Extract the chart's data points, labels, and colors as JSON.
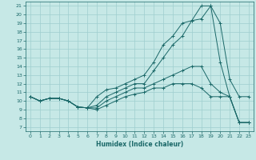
{
  "xlabel": "Humidex (Indice chaleur)",
  "xlim": [
    -0.5,
    23.5
  ],
  "ylim": [
    6.5,
    21.5
  ],
  "xticks": [
    0,
    1,
    2,
    3,
    4,
    5,
    6,
    7,
    8,
    9,
    10,
    11,
    12,
    13,
    14,
    15,
    16,
    17,
    18,
    19,
    20,
    21,
    22,
    23
  ],
  "yticks": [
    7,
    8,
    9,
    10,
    11,
    12,
    13,
    14,
    15,
    16,
    17,
    18,
    19,
    20,
    21
  ],
  "bg_color": "#c6e8e6",
  "grid_color": "#9ecece",
  "line_color": "#1a6868",
  "lines": [
    {
      "x": [
        0,
        1,
        2,
        3,
        4,
        5,
        6,
        7,
        8,
        9,
        10,
        11,
        12,
        13,
        14,
        15,
        16,
        17,
        18,
        19,
        20,
        21,
        22,
        23
      ],
      "y": [
        10.5,
        10.0,
        10.3,
        10.3,
        10.0,
        9.3,
        9.2,
        10.5,
        11.3,
        11.5,
        12.0,
        12.5,
        13.0,
        14.5,
        16.5,
        17.5,
        19.0,
        19.3,
        21.0,
        21.0,
        19.0,
        12.5,
        10.5,
        10.5
      ]
    },
    {
      "x": [
        0,
        1,
        2,
        3,
        4,
        5,
        6,
        7,
        8,
        9,
        10,
        11,
        12,
        13,
        14,
        15,
        16,
        17,
        18,
        19,
        20,
        21,
        22,
        23
      ],
      "y": [
        10.5,
        10.0,
        10.3,
        10.3,
        10.0,
        9.3,
        9.2,
        9.5,
        10.5,
        11.0,
        11.5,
        12.0,
        12.0,
        13.5,
        15.0,
        16.5,
        17.5,
        19.3,
        19.5,
        21.0,
        14.5,
        10.5,
        7.5,
        7.5
      ]
    },
    {
      "x": [
        0,
        1,
        2,
        3,
        4,
        5,
        6,
        7,
        8,
        9,
        10,
        11,
        12,
        13,
        14,
        15,
        16,
        17,
        18,
        19,
        20,
        21,
        22,
        23
      ],
      "y": [
        10.5,
        10.0,
        10.3,
        10.3,
        10.0,
        9.3,
        9.2,
        9.2,
        10.0,
        10.5,
        11.0,
        11.5,
        11.5,
        12.0,
        12.5,
        13.0,
        13.5,
        14.0,
        14.0,
        12.0,
        11.0,
        10.5,
        7.5,
        7.5
      ]
    },
    {
      "x": [
        0,
        1,
        2,
        3,
        4,
        5,
        6,
        7,
        8,
        9,
        10,
        11,
        12,
        13,
        14,
        15,
        16,
        17,
        18,
        19,
        20,
        21,
        22,
        23
      ],
      "y": [
        10.5,
        10.0,
        10.3,
        10.3,
        10.0,
        9.3,
        9.2,
        9.0,
        9.5,
        10.0,
        10.5,
        10.8,
        11.0,
        11.5,
        11.5,
        12.0,
        12.0,
        12.0,
        11.5,
        10.5,
        10.5,
        10.5,
        7.5,
        7.5
      ]
    }
  ]
}
